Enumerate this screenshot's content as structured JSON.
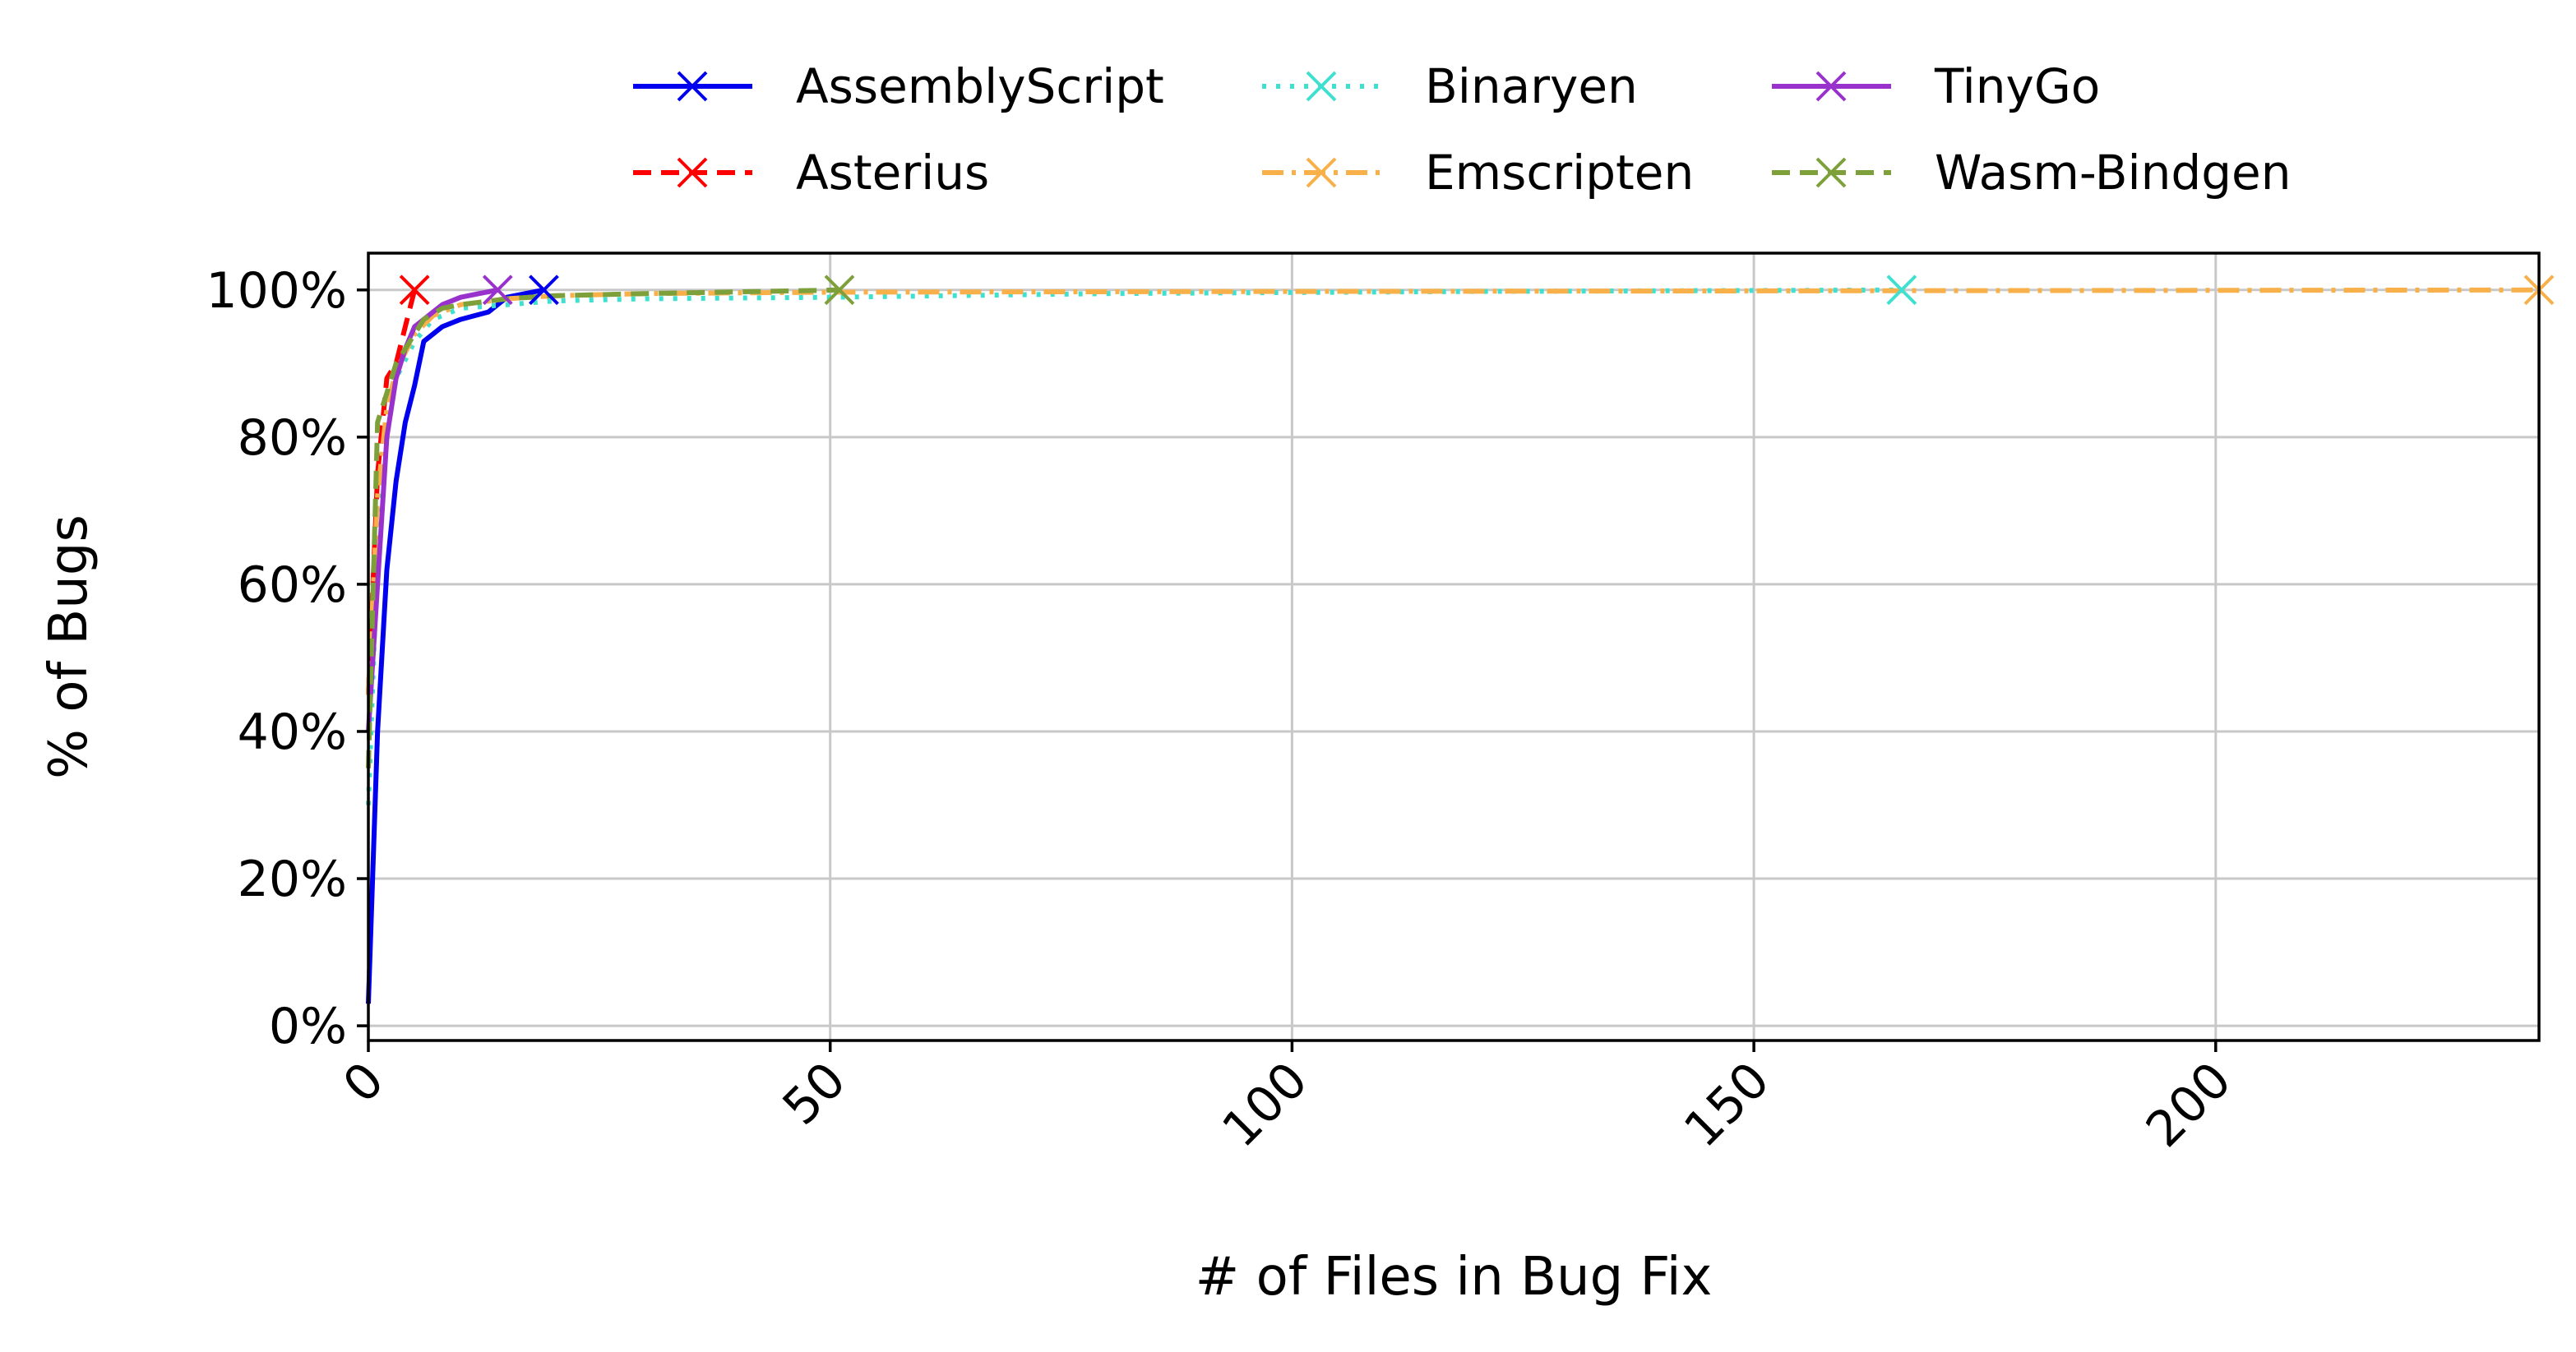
{
  "chart_data": {
    "type": "line",
    "title": "",
    "xlabel": "# of Files in Bug Fix",
    "ylabel": "% of Bugs",
    "xlim": [
      0,
      235
    ],
    "ylim": [
      -2,
      105
    ],
    "x_ticks": [
      0,
      50,
      100,
      150,
      200
    ],
    "y_ticks": [
      0,
      20,
      40,
      60,
      80,
      100
    ],
    "y_tick_suffix": "%",
    "grid": true,
    "legend_position": "top-center",
    "series": [
      {
        "name": "AssemblyScript",
        "color": "#0000ee",
        "style": "solid",
        "x": [
          0,
          1,
          2,
          3,
          4,
          5,
          6,
          8,
          10,
          13,
          15,
          17,
          19
        ],
        "y": [
          3,
          40,
          62,
          74,
          82,
          87,
          93,
          95,
          96,
          97,
          99,
          99.5,
          100
        ]
      },
      {
        "name": "Asterius",
        "color": "#ff0000",
        "style": "dashed",
        "x": [
          0,
          1,
          2,
          3,
          4,
          5
        ],
        "y": [
          45,
          75,
          88,
          90,
          95,
          100
        ]
      },
      {
        "name": "Binaryen",
        "color": "#40e0d0",
        "style": "dotted",
        "x": [
          0,
          1,
          2,
          3,
          5,
          7,
          10,
          15,
          20,
          30,
          50,
          80,
          120,
          166
        ],
        "y": [
          30,
          65,
          80,
          88,
          93,
          96,
          97.5,
          98,
          98.5,
          98.8,
          99,
          99.5,
          99.8,
          100
        ]
      },
      {
        "name": "Emscripten",
        "color": "#f7b04a",
        "style": "dashdot",
        "x": [
          0,
          1,
          2,
          3,
          5,
          7,
          10,
          15,
          20,
          30,
          50,
          100,
          166,
          235
        ],
        "y": [
          45,
          72,
          84,
          89,
          94,
          96.5,
          98,
          98.8,
          99.2,
          99.5,
          99.7,
          99.8,
          99.9,
          100
        ]
      },
      {
        "name": "TinyGo",
        "color": "#9932cc",
        "style": "solid",
        "x": [
          0,
          1,
          2,
          3,
          4,
          5,
          6,
          8,
          10,
          12,
          14
        ],
        "y": [
          40,
          60,
          80,
          88,
          92,
          95,
          96,
          98,
          99,
          99.5,
          100
        ]
      },
      {
        "name": "Wasm-Bindgen",
        "color": "#7da03a",
        "style": "dashed",
        "x": [
          0,
          1,
          2,
          3,
          4,
          5,
          6,
          8,
          10,
          15,
          20,
          30,
          51
        ],
        "y": [
          35,
          82,
          86,
          90,
          92,
          94,
          96,
          97.5,
          98,
          98.8,
          99.2,
          99.5,
          100
        ]
      }
    ]
  }
}
